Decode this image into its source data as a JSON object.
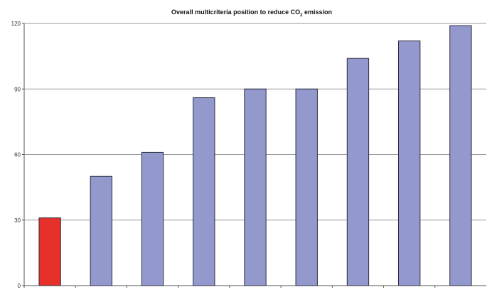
{
  "chart_data": {
    "type": "bar",
    "title_main": "Overall multicriteria position to reduce CO",
    "title_sub": "2",
    "title_end": " emission",
    "categories": [
      "",
      "",
      "",
      "",
      "",
      "",
      "",
      "",
      ""
    ],
    "values": [
      31,
      50,
      61,
      86,
      90,
      90,
      104,
      112,
      119
    ],
    "ylim": [
      0,
      120
    ],
    "yticks": [
      0,
      30,
      60,
      90,
      120
    ],
    "grid": true,
    "legend": "none",
    "colors": {
      "highlight": "#e8302b",
      "bar": "#9499cd",
      "bar_stroke": "#2b2b40",
      "grid": "#9a9a9a",
      "axis": "#555555"
    },
    "highlight_index": 0
  }
}
